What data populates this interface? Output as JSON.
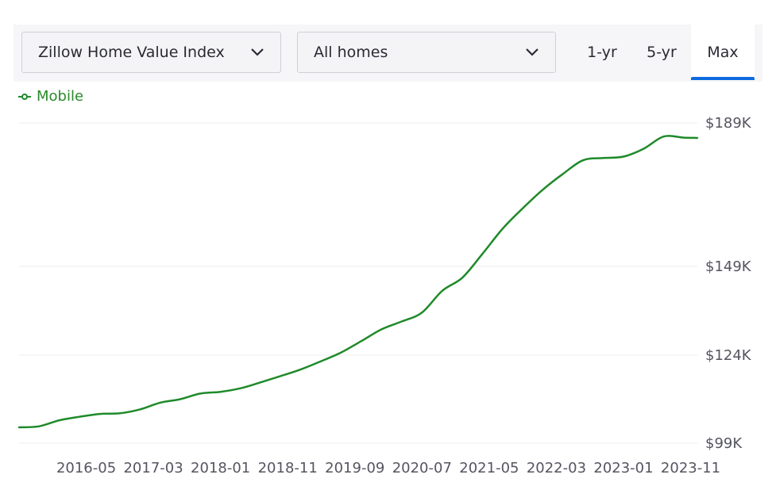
{
  "controls": {
    "metric_select": "Zillow Home Value Index",
    "home_type_select": "All homes",
    "ranges": [
      {
        "label": "1-yr",
        "active": false
      },
      {
        "label": "5-yr",
        "active": false
      },
      {
        "label": "Max",
        "active": true
      }
    ]
  },
  "colors": {
    "series": "#1f8a2a",
    "accent": "#0d6be0",
    "grid": "#ececef",
    "axis_text": "#555560"
  },
  "chart_data": {
    "type": "line",
    "series": [
      {
        "name": "Mobile",
        "x": [
          "2015-07",
          "2015-10",
          "2016-01",
          "2016-04",
          "2016-07",
          "2016-10",
          "2017-01",
          "2017-04",
          "2017-07",
          "2017-10",
          "2018-01",
          "2018-04",
          "2018-07",
          "2018-10",
          "2019-01",
          "2019-04",
          "2019-07",
          "2019-10",
          "2020-01",
          "2020-04",
          "2020-07",
          "2020-10",
          "2021-01",
          "2021-04",
          "2021-07",
          "2021-10",
          "2022-01",
          "2022-04",
          "2022-07",
          "2022-10",
          "2023-01",
          "2023-04",
          "2023-07",
          "2023-10",
          "2023-12"
        ],
        "values": [
          103.5,
          103.8,
          105.5,
          106.5,
          107.3,
          107.5,
          108.6,
          110.5,
          111.5,
          113.1,
          113.6,
          114.6,
          116.3,
          118.1,
          120.0,
          122.3,
          124.8,
          128.0,
          131.3,
          133.5,
          136.0,
          142.1,
          145.8,
          152.5,
          159.5,
          165.2,
          170.4,
          174.8,
          178.6,
          179.2,
          179.6,
          181.8,
          185.2,
          184.9,
          184.8
        ]
      }
    ],
    "x_ticks": [
      "2016-05",
      "2017-03",
      "2018-01",
      "2018-11",
      "2019-09",
      "2020-07",
      "2021-05",
      "2022-03",
      "2023-01",
      "2023-11"
    ],
    "y_ticks": [
      {
        "value": 99,
        "label": "$99K"
      },
      {
        "value": 124,
        "label": "$124K"
      },
      {
        "value": 149,
        "label": "$149K"
      },
      {
        "value": 189,
        "label": "$189K"
      }
    ],
    "ylim": [
      99,
      189
    ],
    "xlim": [
      "2015-07",
      "2023-12"
    ],
    "grid": true,
    "legend_position": "top-left",
    "y_axis_side": "right"
  }
}
